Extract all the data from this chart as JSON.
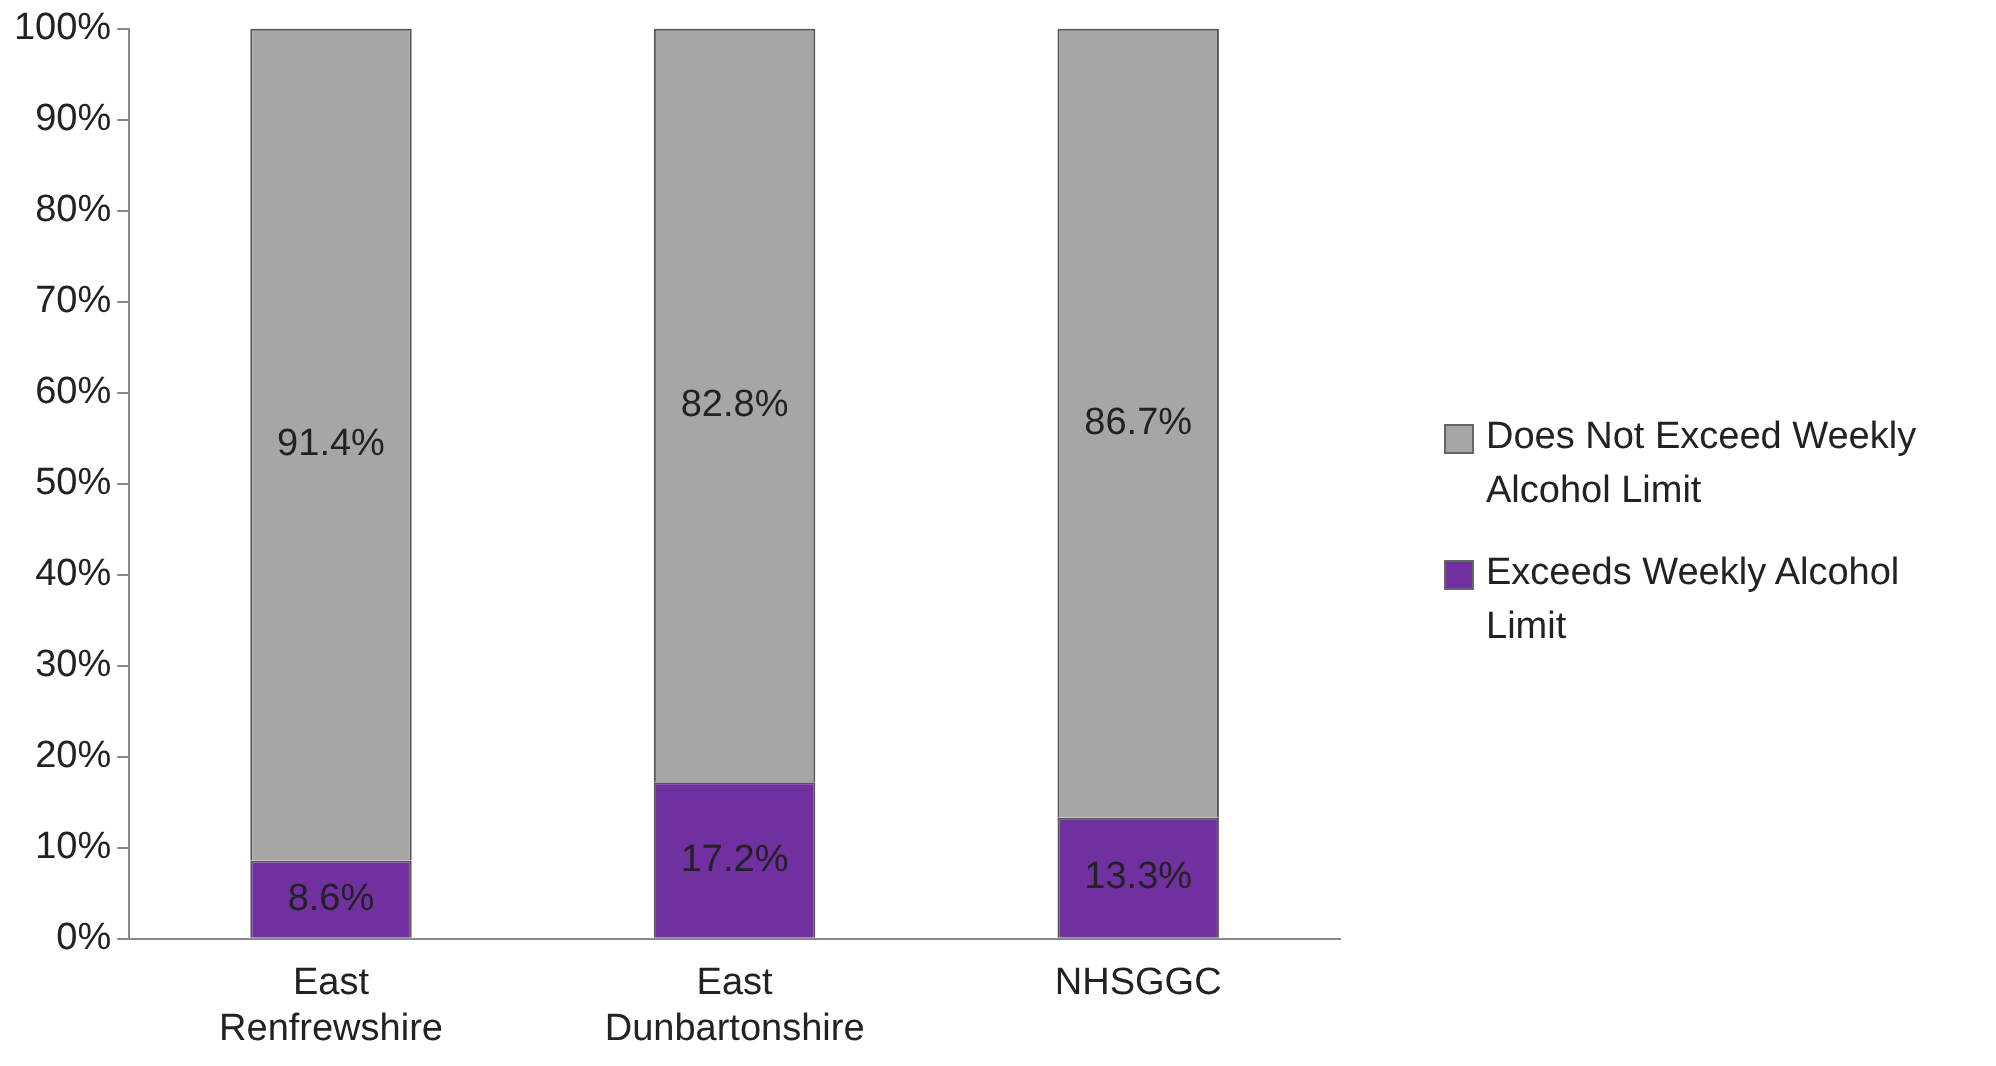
{
  "chart_data": {
    "type": "bar",
    "stacked": true,
    "categories": [
      "East Renfrewshire",
      "East Dunbartonshire",
      "NHSGGC"
    ],
    "series": [
      {
        "name": "Exceeds Weekly Alcohol Limit",
        "color": "#7030a0",
        "values": [
          8.6,
          17.2,
          13.3
        ],
        "value_labels": [
          "8.6%",
          "17.2%",
          "13.3%"
        ]
      },
      {
        "name": "Does Not Exceed  Weekly Alcohol Limit",
        "color": "#a6a6a6",
        "values": [
          91.4,
          82.8,
          86.7
        ],
        "value_labels": [
          "91.4%",
          "82.8%",
          "86.7%"
        ]
      }
    ],
    "ylim": [
      0,
      100
    ],
    "yticks": [
      {
        "value": 0,
        "label": "0%"
      },
      {
        "value": 10,
        "label": "10%"
      },
      {
        "value": 20,
        "label": "20%"
      },
      {
        "value": 30,
        "label": "30%"
      },
      {
        "value": 40,
        "label": "40%"
      },
      {
        "value": 50,
        "label": "50%"
      },
      {
        "value": 60,
        "label": "60%"
      },
      {
        "value": 70,
        "label": "70%"
      },
      {
        "value": 80,
        "label": "80%"
      },
      {
        "value": 90,
        "label": "90%"
      },
      {
        "value": 100,
        "label": "100%"
      }
    ],
    "legend": "right",
    "grid": false
  }
}
